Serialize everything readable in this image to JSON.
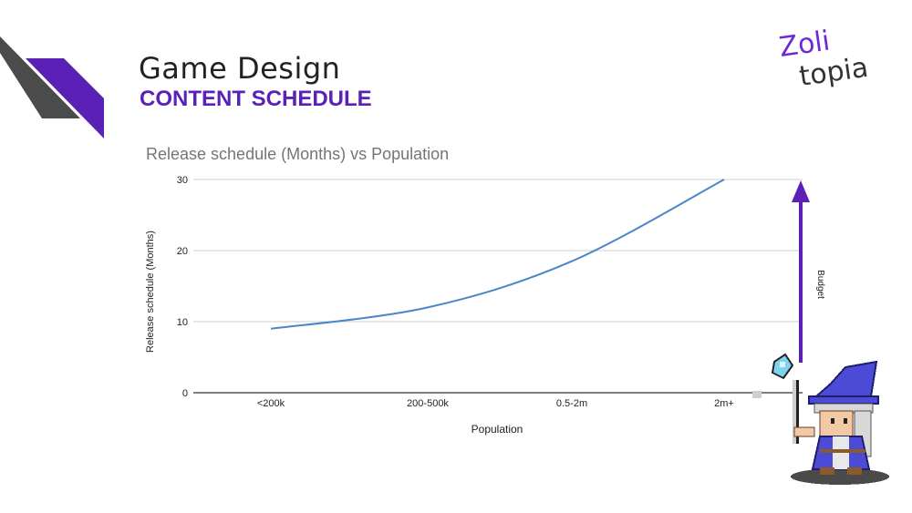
{
  "header": {
    "title": "Game Design",
    "subtitle": "CONTENT SCHEDULE"
  },
  "logo": {
    "line1": "Zoli",
    "line2": "topia"
  },
  "colors": {
    "accent_purple": "#5b21b6",
    "deco_gray": "#4b4b4b",
    "line_blue": "#4a86c8",
    "arrow_purple": "#5b21b6"
  },
  "chart_data": {
    "type": "line",
    "title": "Release schedule (Months) vs Population",
    "xlabel": "Population",
    "ylabel": "Release schedule (Months)",
    "categories": [
      "<200k",
      "200-500k",
      "0.5-2m",
      "2m+"
    ],
    "values": [
      9,
      12,
      18.5,
      30
    ],
    "ylim": [
      0,
      30
    ],
    "yticks": [
      0,
      10,
      20,
      30
    ],
    "grid": true,
    "annotation": "Budget"
  },
  "icons": [
    "zolitopia-logo",
    "wizard-sprite",
    "budget-arrow-icon"
  ]
}
